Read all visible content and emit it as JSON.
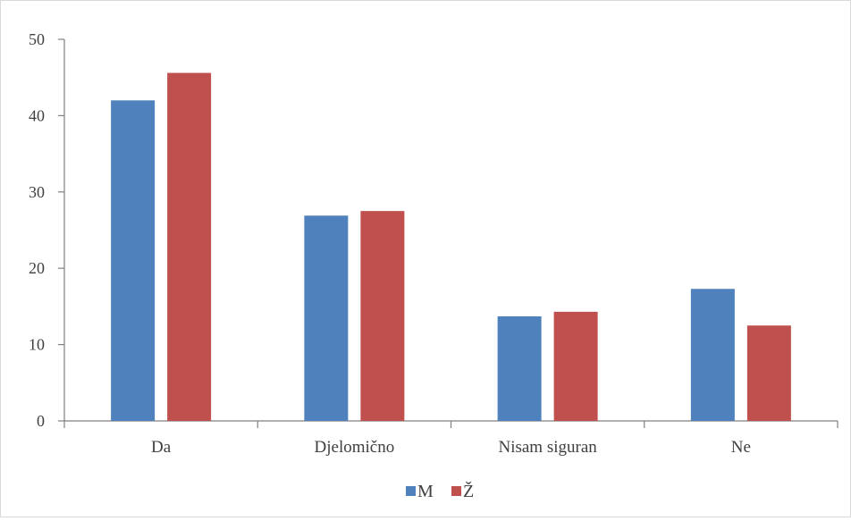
{
  "chart_data": {
    "type": "bar",
    "categories": [
      "Da",
      "Djelomično",
      "Nisam siguran",
      "Ne"
    ],
    "series": [
      {
        "name": "M",
        "values": [
          42.0,
          26.9,
          13.7,
          17.3
        ],
        "color": "#4f81bd"
      },
      {
        "name": "Ž",
        "values": [
          45.6,
          27.5,
          14.3,
          12.5
        ],
        "color": "#c0504d"
      }
    ],
    "ylim": [
      0,
      50
    ],
    "yticks": [
      0,
      10,
      20,
      30,
      40,
      50
    ],
    "grid": false,
    "legend_position": "bottom"
  }
}
